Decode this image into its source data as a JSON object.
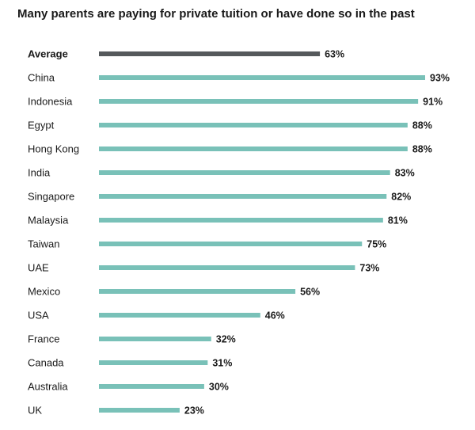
{
  "chart_data": {
    "type": "bar",
    "orientation": "horizontal",
    "title": "Many parents are paying for private tuition or have done so in the past",
    "xlabel": "",
    "ylabel": "",
    "xlim": [
      0,
      100
    ],
    "grid": false,
    "legend": "none",
    "value_suffix": "%",
    "categories": [
      "Average",
      "China",
      "Indonesia",
      "Egypt",
      "Hong Kong",
      "India",
      "Singapore",
      "Malaysia",
      "Taiwan",
      "UAE",
      "Mexico",
      "USA",
      "France",
      "Canada",
      "Australia",
      "UK"
    ],
    "values": [
      63,
      93,
      91,
      88,
      88,
      83,
      82,
      81,
      75,
      73,
      56,
      46,
      32,
      31,
      30,
      23
    ],
    "highlight_category": "Average",
    "colors": {
      "bar": "#79C1B8",
      "highlight_bar": "#55595C",
      "text": "#1a1a1a"
    }
  }
}
